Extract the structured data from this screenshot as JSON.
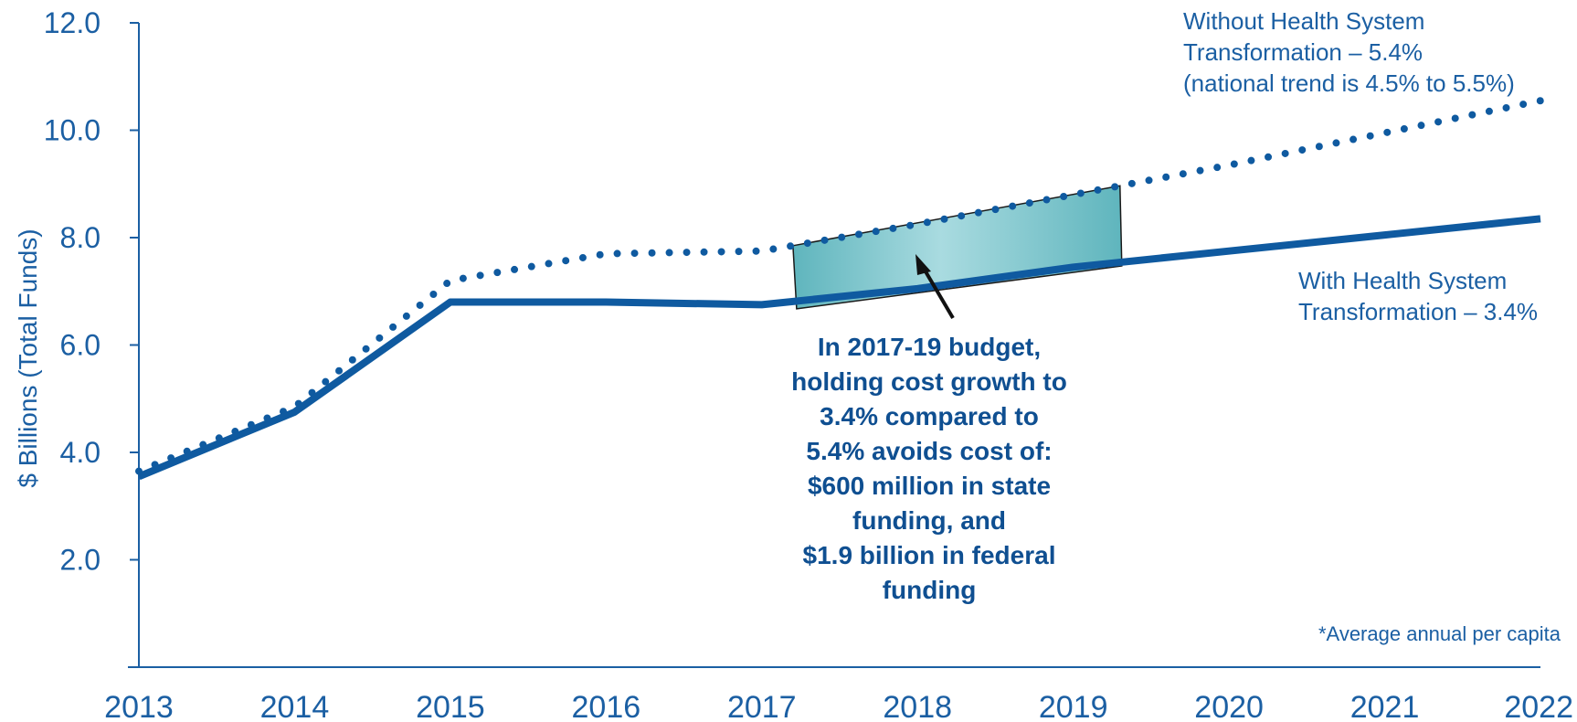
{
  "chart_data": {
    "type": "line",
    "x": [
      "2013",
      "2014",
      "2015",
      "2016",
      "2017",
      "2018",
      "2019",
      "2020",
      "2021",
      "2022"
    ],
    "ylabel": "$ Billions (Total Funds)",
    "ylim": [
      0,
      12
    ],
    "yticks": [
      "2.0",
      "4.0",
      "6.0",
      "8.0",
      "10.0",
      "12.0"
    ],
    "ytick_values": [
      2,
      4,
      6,
      8,
      10,
      12
    ],
    "grid": false,
    "series": [
      {
        "name": "Without Health System Transformation – 5.4%",
        "style": "dotted",
        "color": "#0f5aa0",
        "values": [
          3.65,
          4.85,
          7.2,
          7.7,
          7.75,
          8.25,
          8.8,
          9.35,
          9.95,
          10.55
        ]
      },
      {
        "name": "With Health System Transformation – 3.4%",
        "style": "solid",
        "color": "#0f5aa0",
        "values": [
          3.55,
          4.75,
          6.8,
          6.8,
          6.75,
          7.05,
          7.45,
          7.75,
          8.05,
          8.35
        ]
      }
    ],
    "annotations": {
      "without_label": [
        "Without Health System",
        "Transformation – 5.4%",
        "(national trend is 4.5% to 5.5%)"
      ],
      "with_label": [
        "With Health System",
        "Transformation – 3.4%"
      ],
      "callout": [
        "In 2017-19 budget,",
        "holding cost growth to",
        "3.4% compared to",
        "5.4% avoids cost of:",
        "$600 million in state",
        "funding, and",
        "$1.9 billion in federal",
        "funding"
      ],
      "footnote": "*Average annual per capita",
      "highlight_range": [
        2017.2,
        2019.3
      ]
    },
    "colors": {
      "axis": "#1b5fa3",
      "highlight_light": "#a9dbe0",
      "highlight_dark": "#5fb5bd"
    }
  }
}
